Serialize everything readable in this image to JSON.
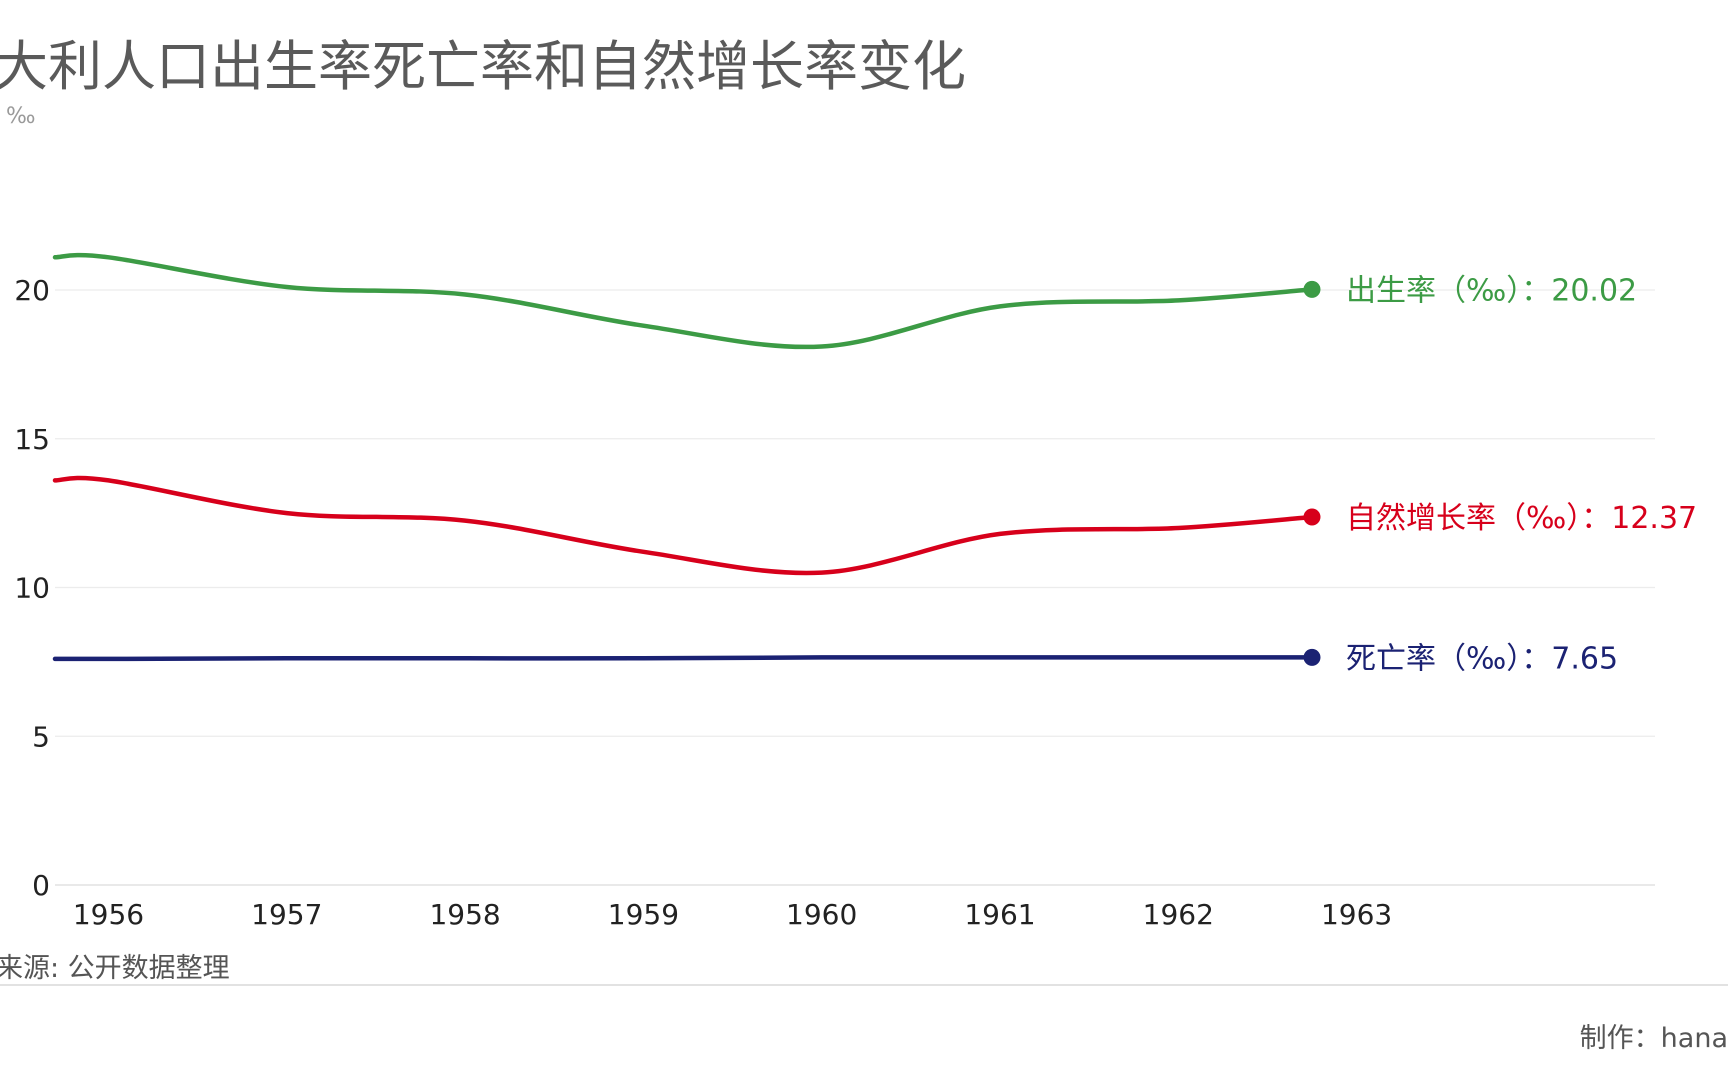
{
  "page": {
    "title": "大利人口出生率死亡率和自然增长率变化",
    "unit": "‰",
    "source": "来源: 公开数据整理",
    "credit": "制作：hana"
  },
  "chart_data": {
    "type": "line",
    "title": "大利人口出生率死亡率和自然增长率变化",
    "ylabel": "‰",
    "ylim": [
      0,
      20
    ],
    "y_ticks": [
      0,
      5,
      10,
      15,
      20
    ],
    "x_ticks": [
      "1956",
      "1957",
      "1958",
      "1959",
      "1960",
      "1961",
      "1962",
      "1963"
    ],
    "grid": true,
    "legend": "end-of-line labels",
    "x": [
      1955.7,
      1956.0,
      1957.0,
      1958.0,
      1959.0,
      1960.0,
      1961.0,
      1962.0,
      1962.75
    ],
    "series": [
      {
        "name": "出生率（‰）",
        "color": "#3c9b45",
        "values": [
          21.1,
          21.1,
          20.1,
          19.85,
          18.8,
          18.1,
          19.45,
          19.65,
          20.02
        ],
        "end_label": "出生率（‰）：20.02"
      },
      {
        "name": "自然增长率（‰）",
        "color": "#d7001b",
        "values": [
          13.6,
          13.6,
          12.5,
          12.25,
          11.2,
          10.5,
          11.8,
          12.0,
          12.37
        ],
        "end_label": "自然增长率（‰）：12.37"
      },
      {
        "name": "死亡率（‰）",
        "color": "#1b2273",
        "values": [
          7.6,
          7.6,
          7.62,
          7.62,
          7.62,
          7.65,
          7.65,
          7.65,
          7.65
        ],
        "end_label": "死亡率（‰）：7.65"
      }
    ]
  }
}
